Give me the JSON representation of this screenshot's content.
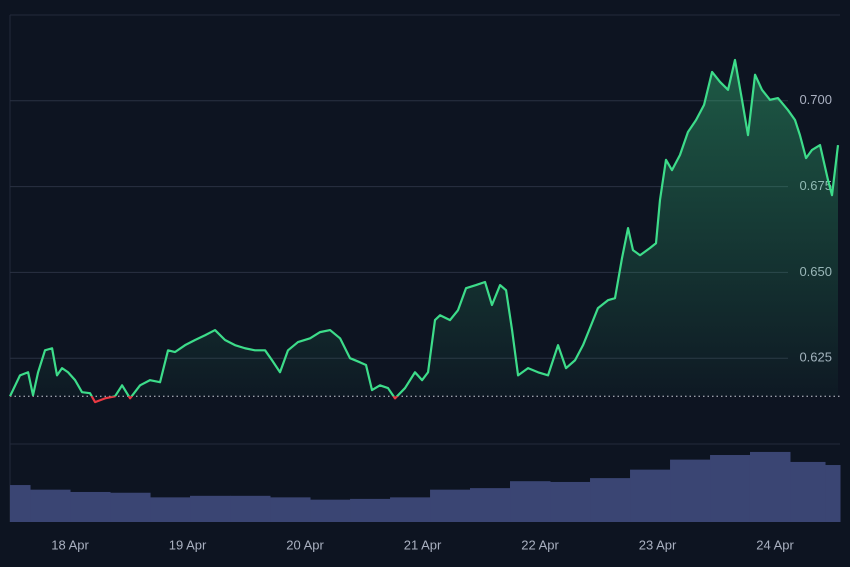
{
  "chart_data": {
    "type": "line",
    "xlim": [
      17.489,
      24.553
    ],
    "xticks": [
      {
        "value": 18,
        "label": "18 Apr"
      },
      {
        "value": 19,
        "label": "19 Apr"
      },
      {
        "value": 20,
        "label": "20 Apr"
      },
      {
        "value": 21,
        "label": "21 Apr"
      },
      {
        "value": 22,
        "label": "22 Apr"
      },
      {
        "value": 23,
        "label": "23 Apr"
      },
      {
        "value": 24,
        "label": "24 Apr"
      }
    ],
    "ylim": [
      0.6,
      0.725
    ],
    "yticks": [
      0.625,
      {
        "value": 0.65,
        "label": "0.650"
      },
      0.675,
      {
        "value": 0.7,
        "label": "0.700"
      }
    ],
    "grid": true,
    "baseline": 0.6139,
    "color": "#3ddc8a",
    "below_color": "#ea3943",
    "x": [
      17.489,
      17.574,
      17.643,
      17.685,
      17.728,
      17.787,
      17.847,
      17.889,
      17.932,
      17.983,
      18.043,
      18.102,
      18.17,
      18.213,
      18.298,
      18.383,
      18.443,
      18.511,
      18.596,
      18.681,
      18.766,
      18.834,
      18.894,
      18.979,
      19.064,
      19.149,
      19.234,
      19.319,
      19.404,
      19.489,
      19.574,
      19.66,
      19.719,
      19.787,
      19.855,
      19.94,
      20.043,
      20.128,
      20.213,
      20.298,
      20.383,
      20.468,
      20.519,
      20.57,
      20.638,
      20.706,
      20.766,
      20.851,
      20.936,
      20.996,
      21.047,
      21.106,
      21.149,
      21.234,
      21.302,
      21.37,
      21.455,
      21.532,
      21.591,
      21.66,
      21.711,
      21.762,
      21.813,
      21.898,
      21.983,
      22.068,
      22.153,
      22.221,
      22.298,
      22.366,
      22.425,
      22.493,
      22.578,
      22.638,
      22.698,
      22.749,
      22.791,
      22.851,
      22.936,
      22.987,
      23.021,
      23.072,
      23.123,
      23.191,
      23.259,
      23.328,
      23.396,
      23.464,
      23.532,
      23.6,
      23.659,
      23.719,
      23.77,
      23.83,
      23.889,
      23.957,
      24.025,
      24.11,
      24.17,
      24.212,
      24.264,
      24.315,
      24.383,
      24.451,
      24.485,
      24.536
    ],
    "values": [
      0.6139,
      0.62,
      0.6209,
      0.6142,
      0.6209,
      0.6273,
      0.6279,
      0.62,
      0.6221,
      0.6209,
      0.6186,
      0.6151,
      0.6148,
      0.6122,
      0.6133,
      0.6139,
      0.6171,
      0.6133,
      0.6171,
      0.6186,
      0.618,
      0.6273,
      0.6268,
      0.6288,
      0.6303,
      0.6317,
      0.6332,
      0.6303,
      0.6288,
      0.6279,
      0.6273,
      0.6273,
      0.6244,
      0.6209,
      0.6273,
      0.6297,
      0.6308,
      0.6326,
      0.6332,
      0.6308,
      0.625,
      0.6238,
      0.623,
      0.6157,
      0.6171,
      0.6163,
      0.6133,
      0.6163,
      0.6209,
      0.6186,
      0.6209,
      0.6361,
      0.6375,
      0.6361,
      0.639,
      0.6454,
      0.6463,
      0.6472,
      0.6405,
      0.6463,
      0.6448,
      0.6332,
      0.62,
      0.6221,
      0.6209,
      0.62,
      0.6288,
      0.6221,
      0.6244,
      0.6288,
      0.6338,
      0.6396,
      0.6419,
      0.6425,
      0.6542,
      0.6629,
      0.6565,
      0.655,
      0.6571,
      0.6585,
      0.6711,
      0.6828,
      0.6798,
      0.6842,
      0.6909,
      0.6944,
      0.6988,
      0.7084,
      0.7055,
      0.7032,
      0.7119,
      0.7003,
      0.69,
      0.7076,
      0.7032,
      0.7003,
      0.7008,
      0.6973,
      0.6944,
      0.69,
      0.6833,
      0.6857,
      0.6871,
      0.6769,
      0.6725,
      0.6871
    ],
    "volume": {
      "color": "#3a4573",
      "vlim": [
        0,
        100
      ],
      "x": [
        17.489,
        17.83,
        18.17,
        18.511,
        18.851,
        19.191,
        19.532,
        19.872,
        20.213,
        20.553,
        20.894,
        21.234,
        21.574,
        21.915,
        22.255,
        22.596,
        22.936,
        23.277,
        23.617,
        23.957,
        24.298,
        24.553
      ],
      "values": [
        48,
        42,
        39,
        38,
        32,
        34,
        34,
        32,
        29,
        30,
        32,
        42,
        44,
        53,
        52,
        57,
        68,
        81,
        87,
        91,
        78,
        74
      ]
    }
  }
}
